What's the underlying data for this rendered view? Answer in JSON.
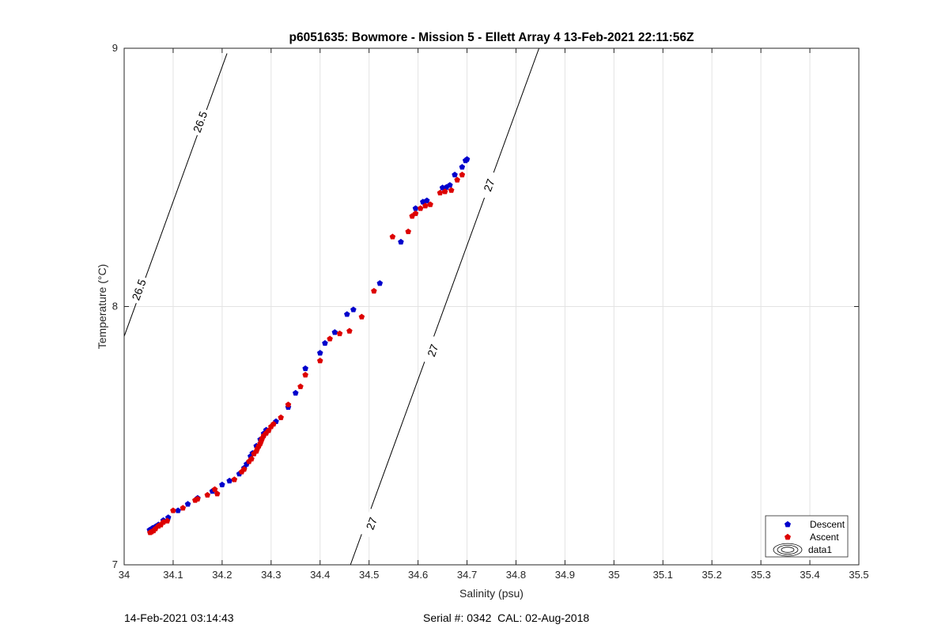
{
  "chart_data": {
    "type": "scatter",
    "title": "p6051635: Bowmore - Mission 5 - Ellett Array 4 13-Feb-2021 22:11:56Z",
    "xlabel": "Salinity (psu)",
    "ylabel": "Temperature (°C)",
    "xlim": [
      34,
      35.5
    ],
    "ylim": [
      7,
      9
    ],
    "xticks": [
      34,
      34.1,
      34.2,
      34.3,
      34.4,
      34.5,
      34.6,
      34.7,
      34.8,
      34.9,
      35,
      35.1,
      35.2,
      35.3,
      35.4,
      35.5
    ],
    "xtick_labels": [
      "34",
      "34.1",
      "34.2",
      "34.3",
      "34.4",
      "34.5",
      "34.6",
      "34.7",
      "34.8",
      "34.9",
      "35",
      "35.1",
      "35.2",
      "35.3",
      "35.4",
      "35.5"
    ],
    "yticks": [
      7,
      8,
      9
    ],
    "ytick_labels": [
      "7",
      "8",
      "9"
    ],
    "grid": true,
    "legend_position": "bottom-right",
    "series": [
      {
        "name": "Descent",
        "color": "#0000cc",
        "points": [
          [
            34.052,
            7.135
          ],
          [
            34.058,
            7.142
          ],
          [
            34.064,
            7.148
          ],
          [
            34.07,
            7.155
          ],
          [
            34.08,
            7.172
          ],
          [
            34.09,
            7.183
          ],
          [
            34.11,
            7.21
          ],
          [
            34.13,
            7.235
          ],
          [
            34.15,
            7.258
          ],
          [
            34.18,
            7.285
          ],
          [
            34.2,
            7.31
          ],
          [
            34.215,
            7.325
          ],
          [
            34.235,
            7.352
          ],
          [
            34.245,
            7.375
          ],
          [
            34.25,
            7.39
          ],
          [
            34.258,
            7.42
          ],
          [
            34.262,
            7.432
          ],
          [
            34.27,
            7.46
          ],
          [
            34.278,
            7.485
          ],
          [
            34.285,
            7.508
          ],
          [
            34.29,
            7.522
          ],
          [
            34.31,
            7.555
          ],
          [
            34.335,
            7.61
          ],
          [
            34.35,
            7.665
          ],
          [
            34.37,
            7.76
          ],
          [
            34.4,
            7.82
          ],
          [
            34.41,
            7.858
          ],
          [
            34.43,
            7.9
          ],
          [
            34.455,
            7.97
          ],
          [
            34.468,
            7.988
          ],
          [
            34.522,
            8.09
          ],
          [
            34.565,
            8.25
          ],
          [
            34.595,
            8.38
          ],
          [
            34.61,
            8.405
          ],
          [
            34.618,
            8.41
          ],
          [
            34.65,
            8.46
          ],
          [
            34.658,
            8.462
          ],
          [
            34.665,
            8.47
          ],
          [
            34.675,
            8.51
          ],
          [
            34.69,
            8.54
          ],
          [
            34.697,
            8.565
          ],
          [
            34.7,
            8.57
          ]
        ]
      },
      {
        "name": "Ascent",
        "color": "#dd0000",
        "points": [
          [
            34.053,
            7.125
          ],
          [
            34.056,
            7.128
          ],
          [
            34.06,
            7.132
          ],
          [
            34.064,
            7.14
          ],
          [
            34.07,
            7.15
          ],
          [
            34.075,
            7.155
          ],
          [
            34.08,
            7.165
          ],
          [
            34.088,
            7.17
          ],
          [
            34.1,
            7.21
          ],
          [
            34.12,
            7.22
          ],
          [
            34.145,
            7.25
          ],
          [
            34.15,
            7.255
          ],
          [
            34.17,
            7.27
          ],
          [
            34.185,
            7.292
          ],
          [
            34.19,
            7.275
          ],
          [
            34.225,
            7.33
          ],
          [
            34.24,
            7.36
          ],
          [
            34.245,
            7.37
          ],
          [
            34.255,
            7.4
          ],
          [
            34.26,
            7.41
          ],
          [
            34.265,
            7.43
          ],
          [
            34.27,
            7.44
          ],
          [
            34.272,
            7.45
          ],
          [
            34.275,
            7.46
          ],
          [
            34.278,
            7.47
          ],
          [
            34.28,
            7.48
          ],
          [
            34.282,
            7.49
          ],
          [
            34.285,
            7.5
          ],
          [
            34.29,
            7.51
          ],
          [
            34.295,
            7.52
          ],
          [
            34.3,
            7.535
          ],
          [
            34.305,
            7.545
          ],
          [
            34.32,
            7.57
          ],
          [
            34.335,
            7.62
          ],
          [
            34.36,
            7.69
          ],
          [
            34.37,
            7.735
          ],
          [
            34.4,
            7.79
          ],
          [
            34.42,
            7.875
          ],
          [
            34.44,
            7.895
          ],
          [
            34.46,
            7.905
          ],
          [
            34.485,
            7.96
          ],
          [
            34.51,
            8.06
          ],
          [
            34.548,
            8.27
          ],
          [
            34.58,
            8.29
          ],
          [
            34.588,
            8.35
          ],
          [
            34.595,
            8.36
          ],
          [
            34.605,
            8.38
          ],
          [
            34.615,
            8.39
          ],
          [
            34.625,
            8.395
          ],
          [
            34.645,
            8.44
          ],
          [
            34.655,
            8.445
          ],
          [
            34.668,
            8.45
          ],
          [
            34.68,
            8.49
          ],
          [
            34.69,
            8.51
          ]
        ]
      },
      {
        "name": "data1",
        "type": "contour",
        "color": "#000000",
        "lines": [
          {
            "level": "26.5",
            "points": [
              [
                33.98,
                7.78
              ],
              [
                34.21,
                8.98
              ]
            ]
          },
          {
            "level": "27",
            "points": [
              [
                34.462,
                7.0
              ],
              [
                34.847,
                9.0
              ]
            ]
          }
        ],
        "contour_labels": [
          {
            "text": "26.5",
            "x": 34.155,
            "y": 8.715
          },
          {
            "text": "26.5",
            "x": 34.03,
            "y": 8.065
          },
          {
            "text": "27",
            "x": 34.745,
            "y": 8.47
          },
          {
            "text": "27",
            "x": 34.63,
            "y": 7.83
          },
          {
            "text": "27",
            "x": 34.505,
            "y": 7.16
          }
        ]
      }
    ]
  },
  "footer": {
    "timestamp": "14-Feb-2021 03:14:43",
    "serial": "Serial #: 0342  CAL: 02-Aug-2018"
  }
}
